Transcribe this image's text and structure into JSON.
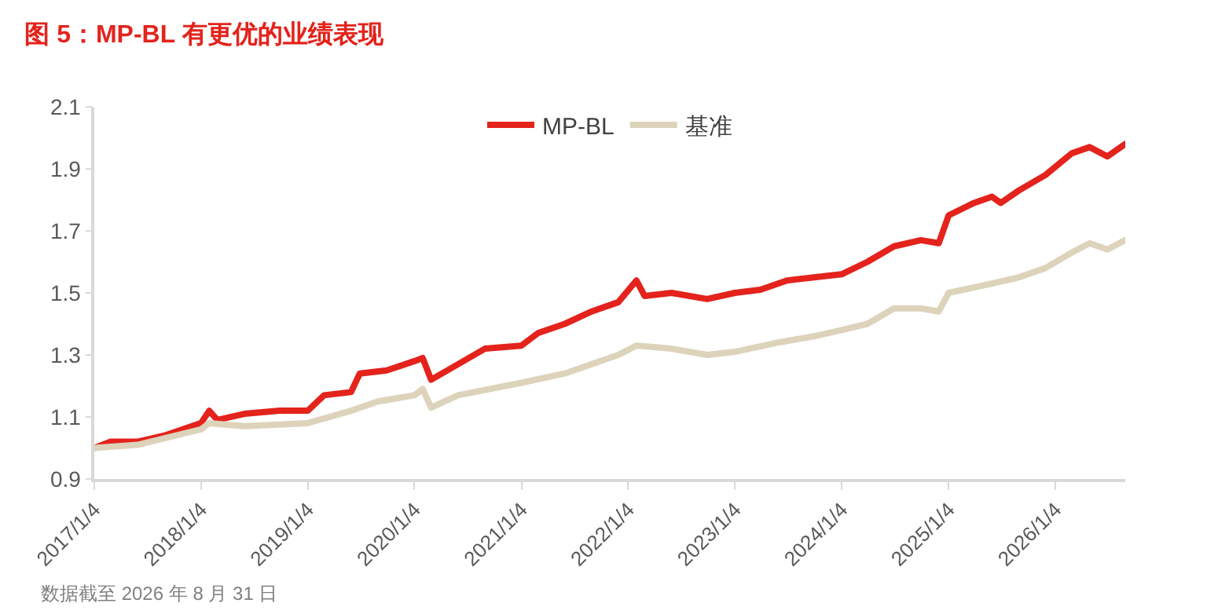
{
  "chart_data": {
    "type": "line",
    "title": "图 5：MP-BL 有更优的业绩表现",
    "series": [
      {
        "name": "MP-BL",
        "color": "#e3231c",
        "x": [
          "2017-01-04",
          "2017-03-01",
          "2017-06-01",
          "2017-09-01",
          "2018-01-04",
          "2018-02-01",
          "2018-03-01",
          "2018-06-01",
          "2018-10-01",
          "2019-01-04",
          "2019-03-01",
          "2019-06-01",
          "2019-07-01",
          "2019-10-01",
          "2020-01-04",
          "2020-02-01",
          "2020-03-01",
          "2020-06-01",
          "2020-09-01",
          "2021-01-04",
          "2021-03-01",
          "2021-06-01",
          "2021-09-01",
          "2021-12-01",
          "2022-02-01",
          "2022-03-01",
          "2022-06-01",
          "2022-10-01",
          "2023-01-04",
          "2023-04-01",
          "2023-07-01",
          "2023-10-01",
          "2024-01-04",
          "2024-04-01",
          "2024-07-01",
          "2024-10-01",
          "2024-12-01",
          "2025-01-04",
          "2025-04-01",
          "2025-06-01",
          "2025-07-01",
          "2025-09-01",
          "2025-12-01",
          "2026-03-01",
          "2026-05-01",
          "2026-07-01",
          "2026-08-31"
        ],
        "values": [
          1.0,
          1.02,
          1.02,
          1.04,
          1.08,
          1.12,
          1.09,
          1.11,
          1.12,
          1.12,
          1.17,
          1.18,
          1.24,
          1.25,
          1.28,
          1.29,
          1.22,
          1.27,
          1.32,
          1.33,
          1.37,
          1.4,
          1.44,
          1.47,
          1.54,
          1.49,
          1.5,
          1.48,
          1.5,
          1.51,
          1.54,
          1.55,
          1.56,
          1.6,
          1.65,
          1.67,
          1.66,
          1.75,
          1.79,
          1.81,
          1.79,
          1.83,
          1.88,
          1.95,
          1.97,
          1.94,
          1.98
        ]
      },
      {
        "name": "基准",
        "color": "#ddd3bb",
        "x": [
          "2017-01-04",
          "2017-06-01",
          "2018-01-04",
          "2018-02-01",
          "2018-06-01",
          "2019-01-04",
          "2019-06-01",
          "2019-09-01",
          "2020-01-04",
          "2020-02-01",
          "2020-03-01",
          "2020-06-01",
          "2021-01-04",
          "2021-06-01",
          "2021-12-01",
          "2022-02-01",
          "2022-06-01",
          "2022-10-01",
          "2023-01-04",
          "2023-06-01",
          "2023-10-01",
          "2024-01-04",
          "2024-04-01",
          "2024-07-01",
          "2024-10-01",
          "2024-12-01",
          "2025-01-04",
          "2025-06-01",
          "2025-09-01",
          "2025-12-01",
          "2026-03-01",
          "2026-05-01",
          "2026-07-01",
          "2026-08-31"
        ],
        "values": [
          1.0,
          1.01,
          1.06,
          1.08,
          1.07,
          1.08,
          1.12,
          1.15,
          1.17,
          1.19,
          1.13,
          1.17,
          1.21,
          1.24,
          1.3,
          1.33,
          1.32,
          1.3,
          1.31,
          1.34,
          1.36,
          1.38,
          1.4,
          1.45,
          1.45,
          1.44,
          1.5,
          1.53,
          1.55,
          1.58,
          1.63,
          1.66,
          1.64,
          1.67
        ]
      }
    ],
    "xlim": [
      "2017-01-04",
      "2026-08-31"
    ],
    "xticks": [
      {
        "value": "2017-01-04",
        "label": "2017/1/4"
      },
      {
        "value": "2018-01-04",
        "label": "2018/1/4"
      },
      {
        "value": "2019-01-04",
        "label": "2019/1/4"
      },
      {
        "value": "2020-01-04",
        "label": "2020/1/4"
      },
      {
        "value": "2021-01-04",
        "label": "2021/1/4"
      },
      {
        "value": "2022-01-04",
        "label": "2022/1/4"
      },
      {
        "value": "2023-01-04",
        "label": "2023/1/4"
      },
      {
        "value": "2024-01-04",
        "label": "2024/1/4"
      },
      {
        "value": "2025-01-04",
        "label": "2025/1/4"
      },
      {
        "value": "2026-01-04",
        "label": "2026/1/4"
      }
    ],
    "ylim": [
      0.9,
      2.1
    ],
    "yticks": [
      {
        "value": 0.9,
        "label": "0.9"
      },
      {
        "value": 1.1,
        "label": "1.1"
      },
      {
        "value": 1.3,
        "label": "1.3"
      },
      {
        "value": 1.5,
        "label": "1.5"
      },
      {
        "value": 1.7,
        "label": "1.7"
      },
      {
        "value": 1.9,
        "label": "1.9"
      },
      {
        "value": 2.1,
        "label": "2.1"
      }
    ],
    "legend": "top",
    "marker": "none",
    "line_style": "solid",
    "annotations": [
      "数据截至 2026 年 8 月 31 日"
    ]
  }
}
